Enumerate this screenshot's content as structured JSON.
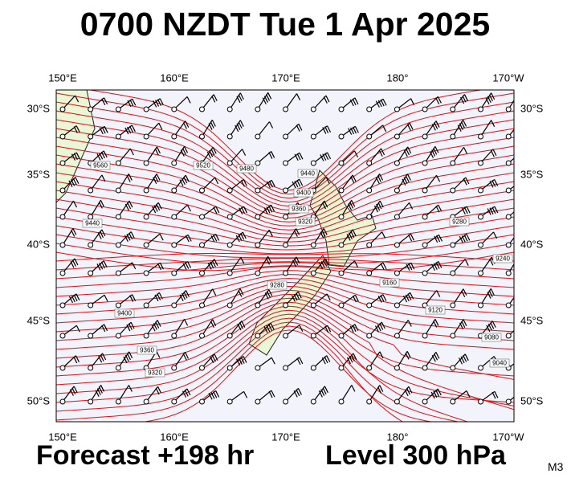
{
  "header": {
    "title": "0700 NZDT Tue 1 Apr 2025"
  },
  "map": {
    "lon_labels": [
      "150°E",
      "160°E",
      "170°E",
      "180°",
      "170°W"
    ],
    "lat_labels": [
      "30°S",
      "35°S",
      "40°S",
      "45°S",
      "50°S"
    ],
    "contour_labels": [
      "9560",
      "9520",
      "9480",
      "9440",
      "9400",
      "9360",
      "9320",
      "9280",
      "9240",
      "9160",
      "9120",
      "9080",
      "9040",
      "9440",
      "9400",
      "9360",
      "9320",
      "9280"
    ]
  },
  "footer": {
    "forecast": "Forecast +198 hr",
    "level": "Level 300 hPa",
    "model": "M3"
  }
}
